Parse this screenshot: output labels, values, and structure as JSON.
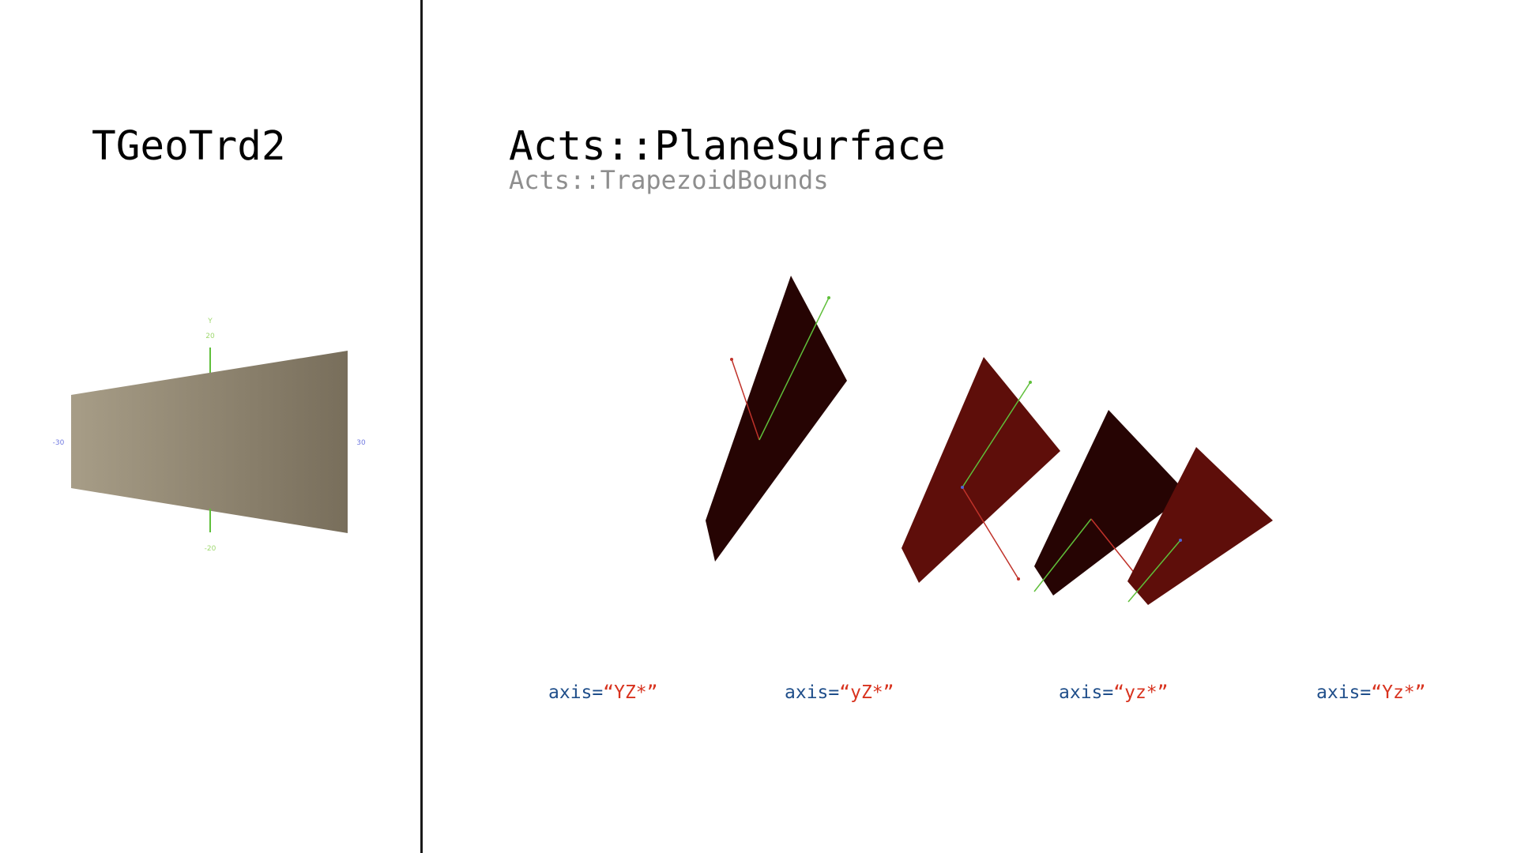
{
  "left_title": "TGeoTrd2",
  "right_title": "Acts::PlaneSurface",
  "right_subtitle": "Acts::TrapezoidBounds",
  "left_view": {
    "y_axis_label": "Y",
    "y_top_tick": "20",
    "y_bottom_tick": "-20",
    "x_left_tick": "-30",
    "x_right_tick": "30"
  },
  "axis_labels": [
    {
      "prefix": "axis=",
      "value": "“YZ*”"
    },
    {
      "prefix": "axis=",
      "value": "“yZ*”"
    },
    {
      "prefix": "axis=",
      "value": "“yz*”"
    },
    {
      "prefix": "axis=",
      "value": "“Yz*”"
    }
  ],
  "colors": {
    "trd_light": "#a79d87",
    "trd_dark": "#786e5b",
    "surface_dark": "#260403",
    "surface_red": "#5e0e0a",
    "axis_green": "#5fbf3a",
    "axis_red": "#c0322a",
    "axis_blue": "#4f63d6"
  }
}
